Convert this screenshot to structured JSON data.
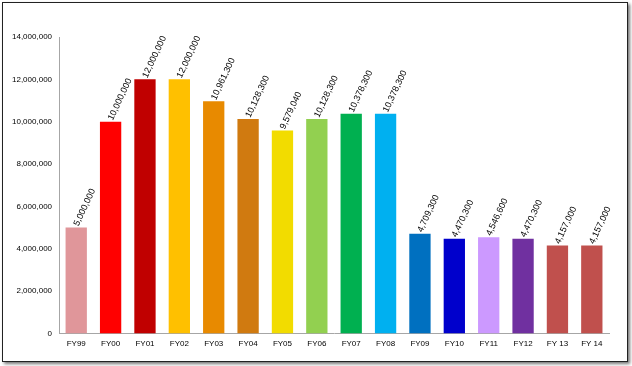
{
  "chart_data": {
    "type": "bar",
    "categories": [
      "FY99",
      "FY00",
      "FY01",
      "FY02",
      "FY03",
      "FY04",
      "FY05",
      "FY06",
      "FY07",
      "FY08",
      "FY09",
      "FY10",
      "FY11",
      "FY12",
      "FY 13",
      "FY 14"
    ],
    "values": [
      5000000,
      10000000,
      12000000,
      12000000,
      10961300,
      10128300,
      9579040,
      10128300,
      10378300,
      10378300,
      4709300,
      4470300,
      4546600,
      4470300,
      4157000,
      4157000
    ],
    "value_labels": [
      "5,000,000",
      "10,000,000",
      "12,000,000",
      "12,000,000",
      "10,961,300",
      "10,128,300",
      "9,579,040",
      "10,128,300",
      "10,378,300",
      "10,378,300",
      "4,709,300",
      "4,470,300",
      "4,546,600",
      "4,470,300",
      "4,157,000",
      "4,157,000"
    ],
    "colors": [
      "#e0969a",
      "#ff0000",
      "#c00000",
      "#ffc000",
      "#e88a00",
      "#d07a10",
      "#f2dc00",
      "#92d050",
      "#00b050",
      "#00b0f0",
      "#0070c0",
      "#0000cc",
      "#cc99ff",
      "#7030a0",
      "#c0504d",
      "#c0504d"
    ],
    "ylim": [
      0,
      14000000
    ],
    "yticks": [
      {
        "value": 0,
        "label": "0"
      },
      {
        "value": 2000000,
        "label": "2,000,000"
      },
      {
        "value": 4000000,
        "label": "4,000,000"
      },
      {
        "value": 6000000,
        "label": "6,000,000"
      },
      {
        "value": 8000000,
        "label": "8,000,000"
      },
      {
        "value": 10000000,
        "label": "10,000,000"
      },
      {
        "value": 12000000,
        "label": "12,000,000"
      },
      {
        "value": 14000000,
        "label": "14,000,000"
      }
    ],
    "grid": false,
    "data_labels": true
  }
}
